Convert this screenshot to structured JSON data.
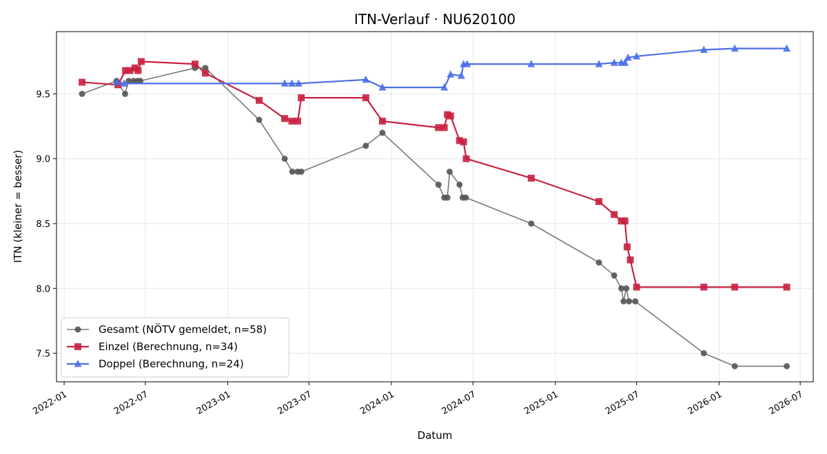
{
  "chart_data": {
    "type": "line",
    "title": "ITN-Verlauf · NU620100",
    "xlabel": "Datum",
    "ylabel": "ITN  (kleiner = besser)",
    "x_ticks": [
      "2022-01",
      "2022-07",
      "2023-01",
      "2023-07",
      "2024-01",
      "2024-07",
      "2025-01",
      "2025-07",
      "2026-01",
      "2026-07"
    ],
    "y_ticks": [
      "7.5",
      "8.0",
      "8.5",
      "9.0",
      "9.5"
    ],
    "xlim": [
      "2021-12-15",
      "2026-07-30"
    ],
    "ylim": [
      7.28,
      9.98
    ],
    "grid": true,
    "legend_position": "lower-left",
    "series": [
      {
        "name": "Gesamt (NÖTV gemeldet, n=58)",
        "color": "#555555",
        "marker": "circle",
        "points": [
          [
            "2022-02-10",
            9.5
          ],
          [
            "2022-04-28",
            9.6
          ],
          [
            "2022-05-17",
            9.5
          ],
          [
            "2022-05-25",
            9.6
          ],
          [
            "2022-06-05",
            9.6
          ],
          [
            "2022-06-14",
            9.6
          ],
          [
            "2022-06-20",
            9.6
          ],
          [
            "2022-10-20",
            9.7
          ],
          [
            "2022-11-12",
            9.7
          ],
          [
            "2023-03-12",
            9.3
          ],
          [
            "2023-05-08",
            9.0
          ],
          [
            "2023-05-25",
            8.9
          ],
          [
            "2023-06-06",
            8.9
          ],
          [
            "2023-06-14",
            8.9
          ],
          [
            "2023-11-05",
            9.1
          ],
          [
            "2023-12-12",
            9.2
          ],
          [
            "2024-04-15",
            8.8
          ],
          [
            "2024-04-28",
            8.7
          ],
          [
            "2024-05-05",
            8.7
          ],
          [
            "2024-05-10",
            8.9
          ],
          [
            "2024-06-01",
            8.8
          ],
          [
            "2024-06-08",
            8.7
          ],
          [
            "2024-06-15",
            8.7
          ],
          [
            "2024-11-08",
            8.5
          ],
          [
            "2025-04-08",
            8.2
          ],
          [
            "2025-05-12",
            8.1
          ],
          [
            "2025-05-28",
            8.0
          ],
          [
            "2025-06-02",
            7.9
          ],
          [
            "2025-06-08",
            8.0
          ],
          [
            "2025-06-14",
            7.9
          ],
          [
            "2025-06-28",
            7.9
          ],
          [
            "2025-11-28",
            7.5
          ],
          [
            "2026-02-05",
            7.4
          ],
          [
            "2026-06-01",
            7.4
          ]
        ]
      },
      {
        "name": "Einzel (Berechnung, n=34)",
        "color": "#c8203f",
        "marker": "square",
        "points": [
          [
            "2022-02-10",
            9.59
          ],
          [
            "2022-05-01",
            9.57
          ],
          [
            "2022-05-18",
            9.68
          ],
          [
            "2022-05-28",
            9.68
          ],
          [
            "2022-06-08",
            9.7
          ],
          [
            "2022-06-15",
            9.68
          ],
          [
            "2022-06-22",
            9.75
          ],
          [
            "2022-10-20",
            9.73
          ],
          [
            "2022-11-12",
            9.66
          ],
          [
            "2023-03-12",
            9.45
          ],
          [
            "2023-05-08",
            9.31
          ],
          [
            "2023-05-24",
            9.29
          ],
          [
            "2023-06-06",
            9.29
          ],
          [
            "2023-06-14",
            9.47
          ],
          [
            "2023-11-05",
            9.47
          ],
          [
            "2023-12-12",
            9.29
          ],
          [
            "2024-04-15",
            9.24
          ],
          [
            "2024-04-28",
            9.24
          ],
          [
            "2024-05-05",
            9.34
          ],
          [
            "2024-05-12",
            9.33
          ],
          [
            "2024-06-01",
            9.14
          ],
          [
            "2024-06-10",
            9.13
          ],
          [
            "2024-06-16",
            9.0
          ],
          [
            "2024-11-08",
            8.85
          ],
          [
            "2025-04-08",
            8.67
          ],
          [
            "2025-05-12",
            8.57
          ],
          [
            "2025-05-28",
            8.52
          ],
          [
            "2025-06-05",
            8.52
          ],
          [
            "2025-06-10",
            8.32
          ],
          [
            "2025-06-17",
            8.22
          ],
          [
            "2025-07-01",
            8.01
          ],
          [
            "2025-11-28",
            8.01
          ],
          [
            "2026-02-05",
            8.01
          ],
          [
            "2026-06-01",
            8.01
          ]
        ]
      },
      {
        "name": "Doppel (Berechnung, n=24)",
        "color": "#4a6ee8",
        "marker": "triangle",
        "points": [
          [
            "2022-04-28",
            9.59
          ],
          [
            "2022-05-15",
            9.58
          ],
          [
            "2023-05-08",
            9.58
          ],
          [
            "2023-05-24",
            9.58
          ],
          [
            "2023-06-08",
            9.58
          ],
          [
            "2023-11-05",
            9.61
          ],
          [
            "2023-12-12",
            9.55
          ],
          [
            "2024-04-28",
            9.55
          ],
          [
            "2024-05-12",
            9.65
          ],
          [
            "2024-06-05",
            9.64
          ],
          [
            "2024-06-10",
            9.73
          ],
          [
            "2024-06-18",
            9.73
          ],
          [
            "2024-11-08",
            9.73
          ],
          [
            "2025-04-08",
            9.73
          ],
          [
            "2025-05-12",
            9.74
          ],
          [
            "2025-05-28",
            9.74
          ],
          [
            "2025-06-05",
            9.74
          ],
          [
            "2025-06-12",
            9.78
          ],
          [
            "2025-07-01",
            9.79
          ],
          [
            "2025-11-28",
            9.84
          ],
          [
            "2026-02-05",
            9.85
          ],
          [
            "2026-06-01",
            9.85
          ]
        ]
      }
    ]
  }
}
